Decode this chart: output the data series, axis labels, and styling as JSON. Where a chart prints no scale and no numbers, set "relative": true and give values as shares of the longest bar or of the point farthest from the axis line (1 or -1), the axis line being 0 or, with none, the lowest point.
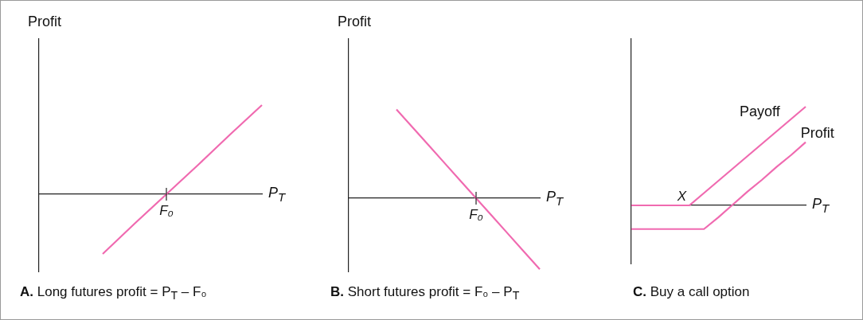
{
  "chart_data": [
    {
      "type": "line",
      "title": "A. Long futures profit = P$_{T}$ – F₀",
      "ylabel": "Profit",
      "xlabel": "P$_{T}$",
      "relative": true,
      "marker": "none",
      "annotations": [
        "F₀"
      ],
      "categories": [
        null,
        null,
        null,
        null,
        null,
        null,
        null,
        null
      ],
      "series": [
        {
          "color": "#f06ab0",
          "values": [
            null,
            null,
            -0.67,
            -0.33,
            0,
            0.33,
            0.67,
            1
          ]
        }
      ]
    },
    {
      "type": "line",
      "title": "B. Short futures profit = F₀ – P$_{T}$",
      "ylabel": "Profit",
      "xlabel": "P$_{T}$",
      "relative": true,
      "marker": "none",
      "annotations": [
        "F₀"
      ],
      "categories": [
        null,
        null,
        null,
        null,
        null,
        null,
        null,
        null,
        null,
        null,
        null,
        null,
        null
      ],
      "series": [
        {
          "color": "#f06ab0",
          "values": [
            null,
            null,
            null,
            1,
            0.8,
            0.6,
            0.4,
            0.2,
            0,
            -0.2,
            -0.4,
            -0.6,
            -0.8
          ]
        }
      ]
    },
    {
      "type": "line",
      "title": "C. Buy a call option",
      "xlabel": "P$_{T}$",
      "relative": true,
      "marker": "none",
      "annotations": [
        "X"
      ],
      "categories": [
        null,
        null,
        null,
        null,
        null,
        null,
        null,
        null,
        null,
        null,
        null,
        null,
        null
      ],
      "series": [
        {
          "name": "Payoff",
          "color": "#f06ab0",
          "values": [
            0,
            0,
            0,
            0,
            0,
            0.125,
            0.25,
            0.375,
            0.5,
            0.625,
            0.75,
            0.875,
            1
          ]
        },
        {
          "name": "Profit",
          "color": "#f06ab0",
          "values": [
            -0.24,
            -0.24,
            -0.24,
            -0.24,
            -0.24,
            -0.24,
            -0.12,
            0.01,
            0.14,
            0.26,
            0.39,
            0.51,
            0.64
          ]
        }
      ]
    }
  ]
}
